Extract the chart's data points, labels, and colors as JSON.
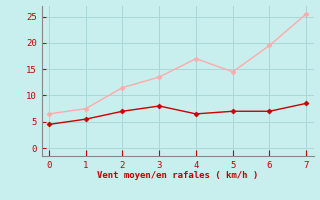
{
  "x": [
    0,
    1,
    2,
    3,
    4,
    5,
    6,
    7
  ],
  "y_rafales": [
    6.5,
    7.5,
    11.5,
    13.5,
    17.0,
    14.5,
    19.5,
    25.5
  ],
  "y_moyen": [
    4.5,
    5.5,
    7.0,
    8.0,
    6.5,
    7.0,
    7.0,
    8.5
  ],
  "color_rafales": "#ffaaaa",
  "color_moyen": "#cc0000",
  "bg_color": "#c8eeee",
  "grid_color": "#aad8d8",
  "xlabel": "Vent moyen/en rafales ( km/h )",
  "xlabel_color": "#cc0000",
  "tick_color": "#cc0000",
  "spine_color": "#888888",
  "xlim": [
    -0.2,
    7.2
  ],
  "ylim": [
    -1.5,
    27
  ],
  "yticks": [
    0,
    5,
    10,
    15,
    20,
    25
  ],
  "xticks": [
    0,
    1,
    2,
    3,
    4,
    5,
    6,
    7
  ]
}
